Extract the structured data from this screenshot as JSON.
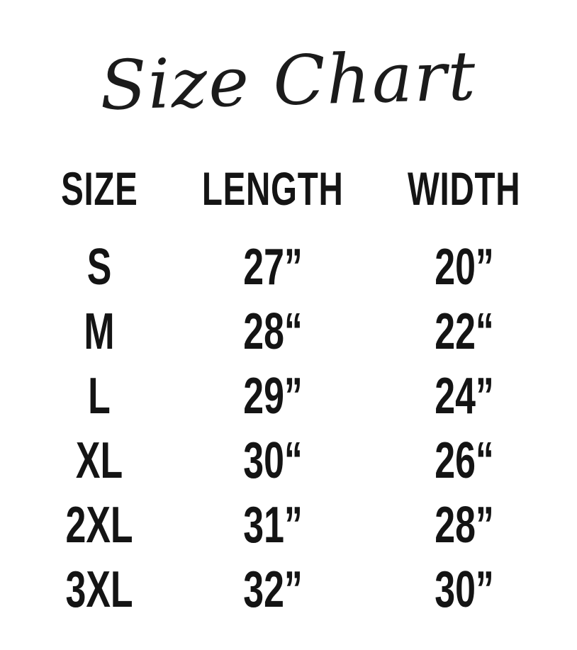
{
  "title": "Size Chart",
  "colors": {
    "text": "#141414",
    "background": "#ffffff"
  },
  "table": {
    "headers": {
      "size": "SIZE",
      "length": "LENGTH",
      "width": "WIDTH"
    },
    "rows": [
      {
        "size": "S",
        "length": "27”",
        "width": "20”"
      },
      {
        "size": "M",
        "length": "28“",
        "width": "22“"
      },
      {
        "size": "L",
        "length": "29”",
        "width": "24”"
      },
      {
        "size": "XL",
        "length": "30“",
        "width": "26“"
      },
      {
        "size": "2XL",
        "length": "31”",
        "width": "28”"
      },
      {
        "size": "3XL",
        "length": "32”",
        "width": "30”"
      }
    ]
  },
  "chart_data": {
    "type": "table",
    "title": "Size Chart",
    "columns": [
      "SIZE",
      "LENGTH",
      "WIDTH"
    ],
    "sizes": [
      "S",
      "M",
      "L",
      "XL",
      "2XL",
      "3XL"
    ],
    "length_inches": [
      27,
      28,
      29,
      30,
      31,
      32
    ],
    "width_inches": [
      20,
      22,
      24,
      26,
      28,
      30
    ],
    "units": "inches",
    "rows": [
      [
        "S",
        "27\"",
        "20\""
      ],
      [
        "M",
        "28\"",
        "22\""
      ],
      [
        "L",
        "29\"",
        "24\""
      ],
      [
        "XL",
        "30\"",
        "26\""
      ],
      [
        "2XL",
        "31\"",
        "28\""
      ],
      [
        "3XL",
        "32\"",
        "30\""
      ]
    ]
  }
}
